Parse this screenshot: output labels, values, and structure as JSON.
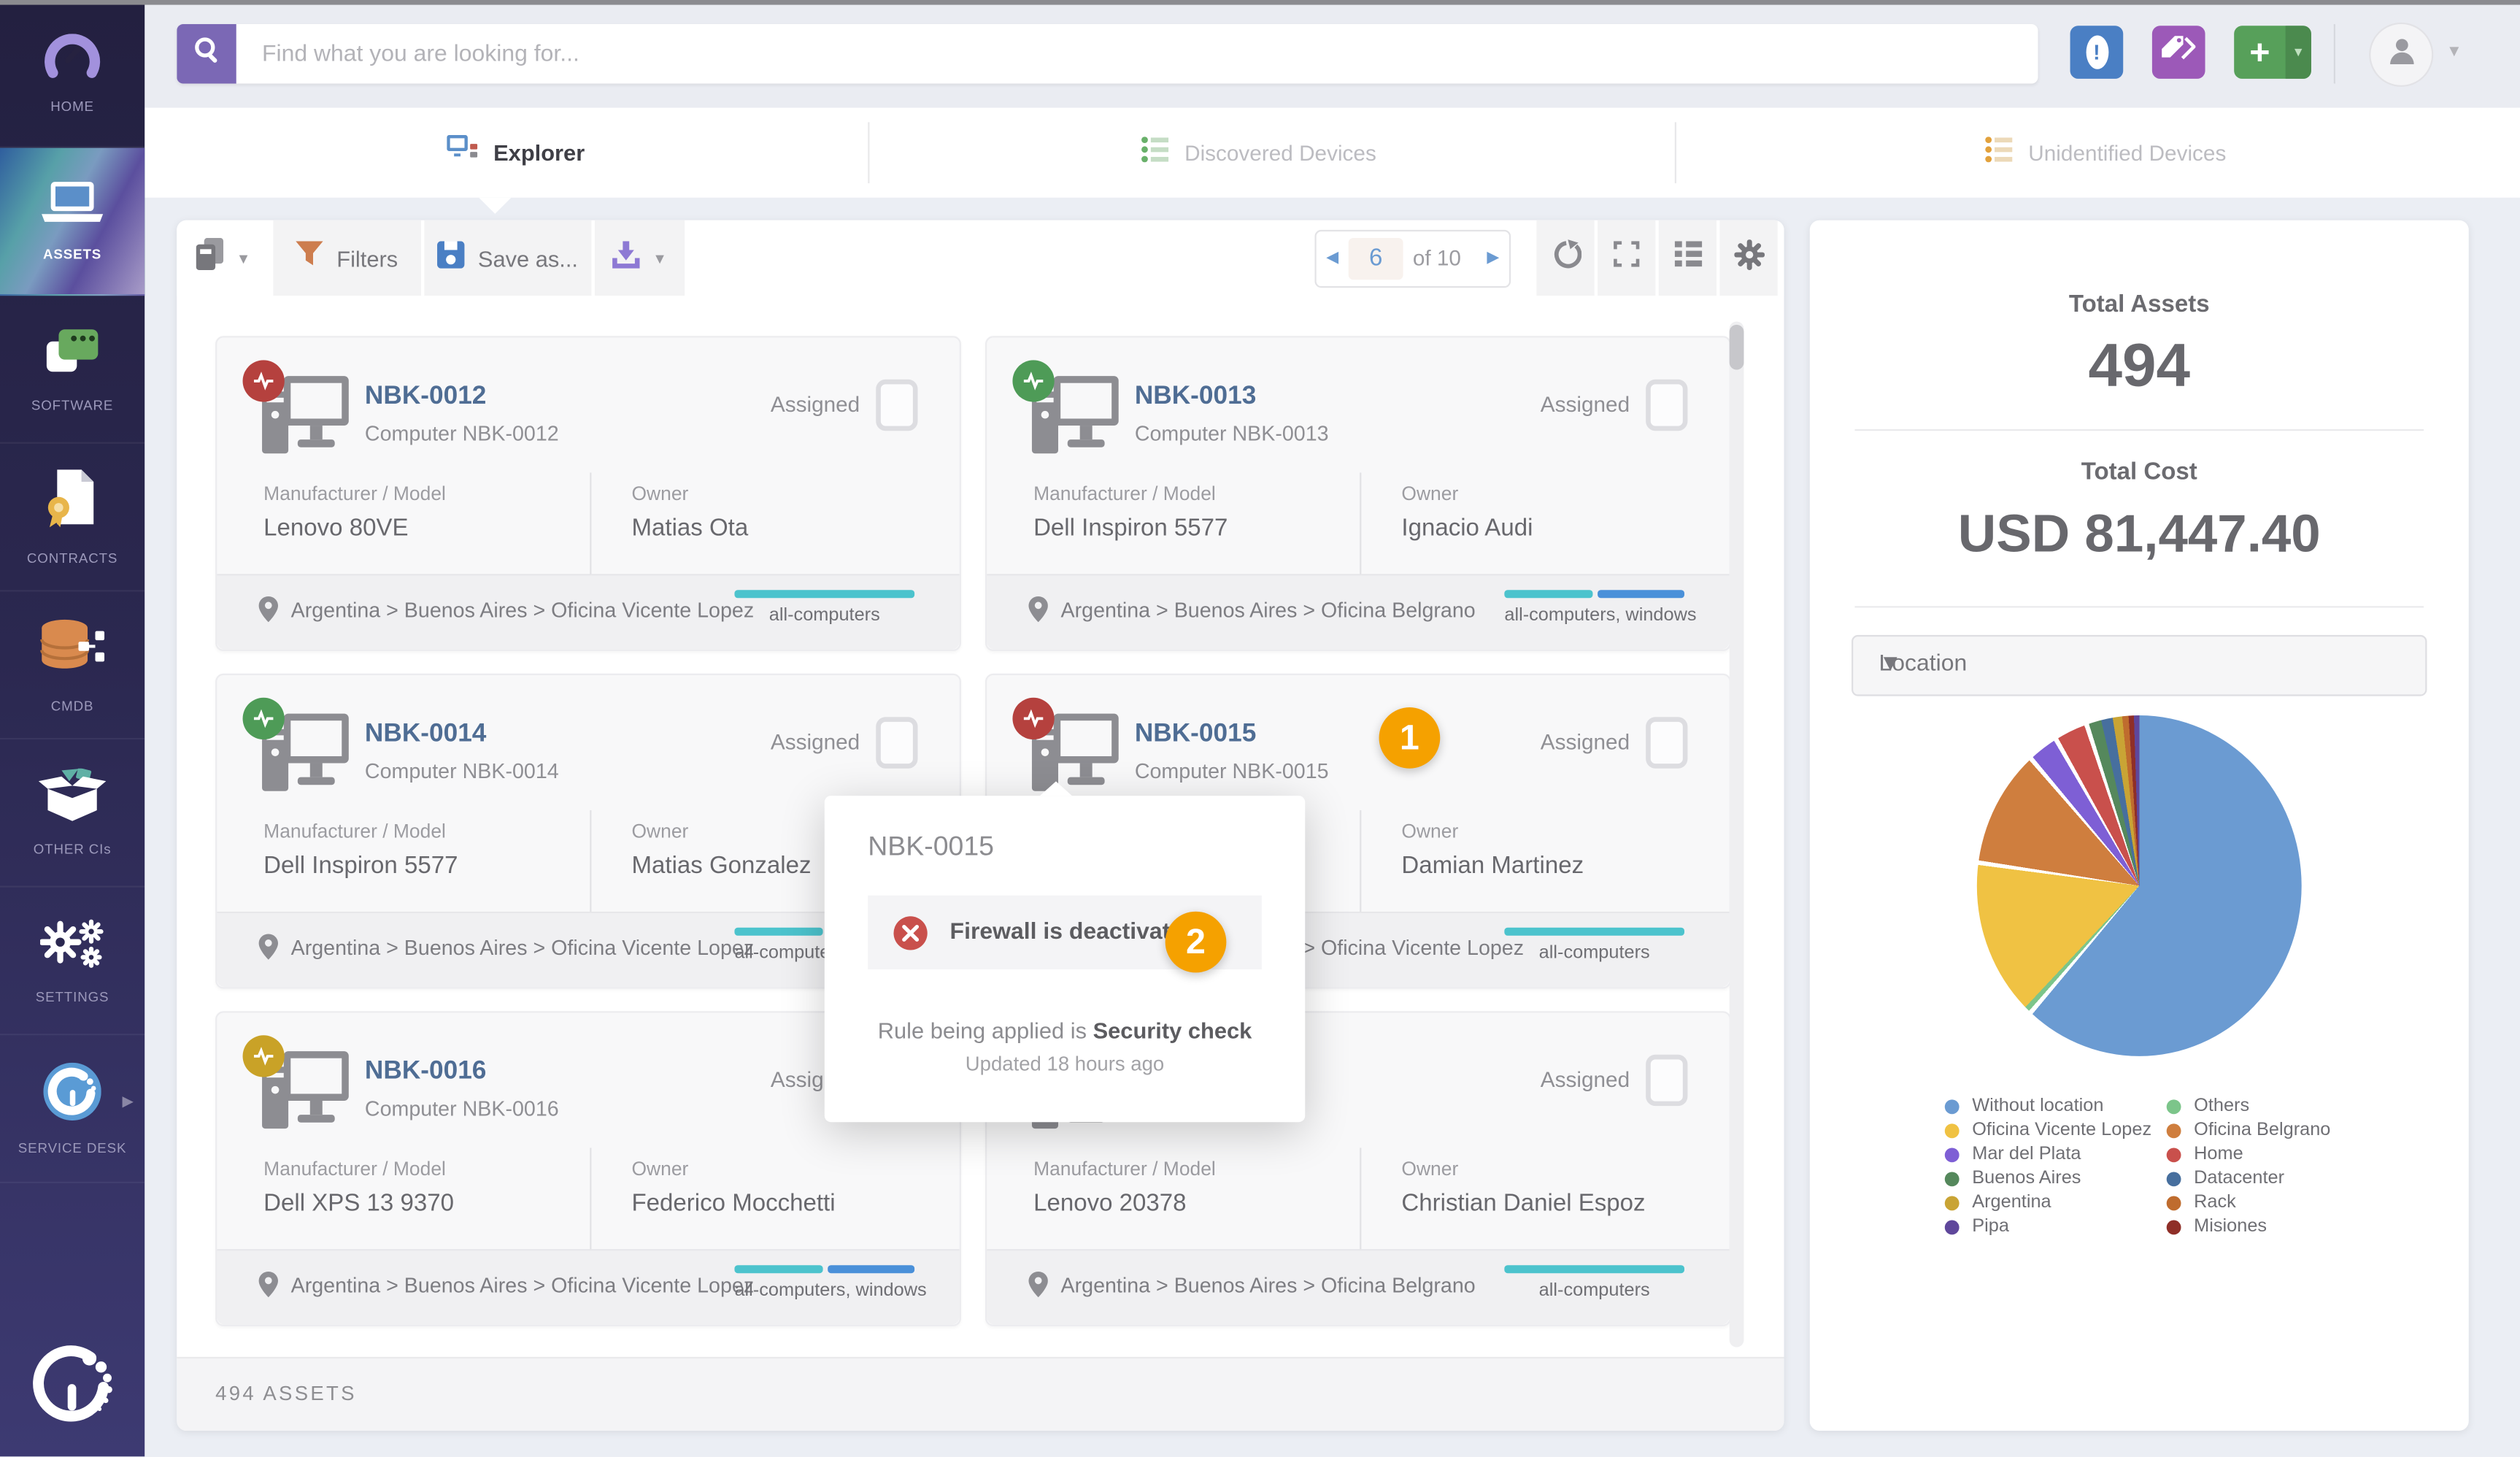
{
  "colors": {
    "accent_purple": "#7b68b5",
    "alert_blue": "#4a7fc4",
    "tags_purple": "#9c59b8",
    "add_green": "#57a05a",
    "status_red": "#b5413e",
    "status_green": "#4e9b57",
    "status_yellow": "#c9a227",
    "tag_teal": "#4cc3cd",
    "tag_blue": "#4a90d9",
    "marker_orange": "#f5a100"
  },
  "sidebar": {
    "items": [
      {
        "label": "HOME",
        "icon": "gauge-icon"
      },
      {
        "label": "ASSETS",
        "icon": "laptop-icon",
        "active": true
      },
      {
        "label": "SOFTWARE",
        "icon": "software-window-icon"
      },
      {
        "label": "CONTRACTS",
        "icon": "contract-document-icon"
      },
      {
        "label": "CMDB",
        "icon": "database-network-icon"
      },
      {
        "label": "OTHER CIs",
        "icon": "open-box-icon"
      },
      {
        "label": "SETTINGS",
        "icon": "gears-icon"
      },
      {
        "label": "SERVICE DESK",
        "icon": "service-desk-logo-icon"
      }
    ]
  },
  "topbar": {
    "search_placeholder": "Find what you are looking for..."
  },
  "tabs": {
    "explorer": "Explorer",
    "discovered": "Discovered Devices",
    "unidentified": "Unidentified Devices"
  },
  "toolbar": {
    "filters": "Filters",
    "save_as": "Save as...",
    "page_current": "6",
    "page_of": "of 10"
  },
  "labels": {
    "assigned": "Assigned",
    "manufacturer": "Manufacturer / Model",
    "owner": "Owner"
  },
  "cards": [
    {
      "title": "NBK-0012",
      "subtitle": "Computer NBK-0012",
      "status_color": "#b5413e",
      "manufacturer": "Lenovo 80VE",
      "owner": "Matias Ota",
      "location": "Argentina > Buenos Aires > Oficina Vicente Lopez",
      "tag_label": "all-computers",
      "bars": [
        "#4cc3cd"
      ]
    },
    {
      "title": "NBK-0013",
      "subtitle": "Computer NBK-0013",
      "status_color": "#4e9b57",
      "manufacturer": "Dell Inspiron 5577",
      "owner": "Ignacio Audi",
      "location": "Argentina > Buenos Aires > Oficina Belgrano",
      "tag_label": "all-computers, windows",
      "bars": [
        "#4cc3cd",
        "#4a90d9"
      ]
    },
    {
      "title": "NBK-0014",
      "subtitle": "Computer NBK-0014",
      "status_color": "#4e9b57",
      "manufacturer": "Dell Inspiron 5577",
      "owner": "Matias Gonzalez",
      "location": "Argentina > Buenos Aires > Oficina Vicente Lopez",
      "tag_label": "all-computers, windows",
      "bars": [
        "#4cc3cd",
        "#4a90d9"
      ]
    },
    {
      "title": "NBK-0015",
      "subtitle": "Computer NBK-0015",
      "status_color": "#b5413e",
      "manufacturer": "",
      "owner": "Damian Martinez",
      "location": "Argentina > Buenos Aires > Oficina Vicente Lopez",
      "tag_label": "all-computers",
      "bars": [
        "#4cc3cd"
      ]
    },
    {
      "title": "NBK-0016",
      "subtitle": "Computer NBK-0016",
      "status_color": "#c9a227",
      "manufacturer": "Dell XPS 13 9370",
      "owner": "Federico Mocchetti",
      "location": "Argentina > Buenos Aires > Oficina Vicente Lopez",
      "tag_label": "all-computers, windows",
      "bars": [
        "#4cc3cd",
        "#4a90d9"
      ]
    },
    {
      "title": "",
      "subtitle": "",
      "status_color": null,
      "manufacturer": "Lenovo 20378",
      "owner": "Christian Daniel Espoz",
      "location": "Argentina > Buenos Aires > Oficina Belgrano",
      "tag_label": "all-computers",
      "bars": [
        "#4cc3cd"
      ]
    }
  ],
  "popup": {
    "title": "NBK-0015",
    "alert": "Firewall is deactivated",
    "rule_prefix": "Rule being applied is",
    "rule_name": "Security check",
    "updated": "Updated 18 hours ago"
  },
  "markers": {
    "one": "1",
    "two": "2"
  },
  "summary": {
    "total_assets_label": "Total Assets",
    "total_assets": "494",
    "total_cost_label": "Total Cost",
    "total_cost": "USD 81,447.40",
    "location_filter": "Location"
  },
  "chart_data": {
    "type": "pie",
    "unit": "percent-of-494-assets",
    "legend_position": "bottom-two-columns",
    "slices": [
      {
        "label": "Without location",
        "color": "#6b9bd2",
        "percent": 61.5
      },
      {
        "label": "Others",
        "color": "#7cc58a",
        "percent": 0.5
      },
      {
        "label": "Oficina Vicente Lopez",
        "color": "#f0c243",
        "percent": 15.5
      },
      {
        "label": "Oficina Belgrano",
        "color": "#cf7e3e",
        "percent": 11.5
      },
      {
        "label": "Mar del Plata",
        "color": "#7e5fd5",
        "percent": 3.0
      },
      {
        "label": "Home",
        "color": "#c9504c",
        "percent": 3.2
      },
      {
        "label": "Buenos Aires",
        "color": "#55885c",
        "percent": 1.2
      },
      {
        "label": "Datacenter",
        "color": "#476f9e",
        "percent": 1.1
      },
      {
        "label": "Argentina",
        "color": "#c9a435",
        "percent": 0.9
      },
      {
        "label": "Rack",
        "color": "#bf6c2e",
        "percent": 0.6
      },
      {
        "label": "Misiones",
        "color": "#8f2f28",
        "percent": 0.5
      },
      {
        "label": "Pipa",
        "color": "#5f479b",
        "percent": 0.5
      }
    ],
    "legend_left": [
      {
        "label": "Without location",
        "color": "#6b9bd2"
      },
      {
        "label": "Oficina Vicente Lopez",
        "color": "#f0c243"
      },
      {
        "label": "Mar del Plata",
        "color": "#7e5fd5"
      },
      {
        "label": "Buenos Aires",
        "color": "#55885c"
      },
      {
        "label": "Argentina",
        "color": "#c9a435"
      },
      {
        "label": "Pipa",
        "color": "#5f479b"
      }
    ],
    "legend_right": [
      {
        "label": "Others",
        "color": "#7cc58a"
      },
      {
        "label": "Oficina Belgrano",
        "color": "#cf7e3e"
      },
      {
        "label": "Home",
        "color": "#c9504c"
      },
      {
        "label": "Datacenter",
        "color": "#476f9e"
      },
      {
        "label": "Rack",
        "color": "#bf6c2e"
      },
      {
        "label": "Misiones",
        "color": "#8f2f28"
      }
    ]
  },
  "footer": {
    "count": "494 ASSETS"
  }
}
